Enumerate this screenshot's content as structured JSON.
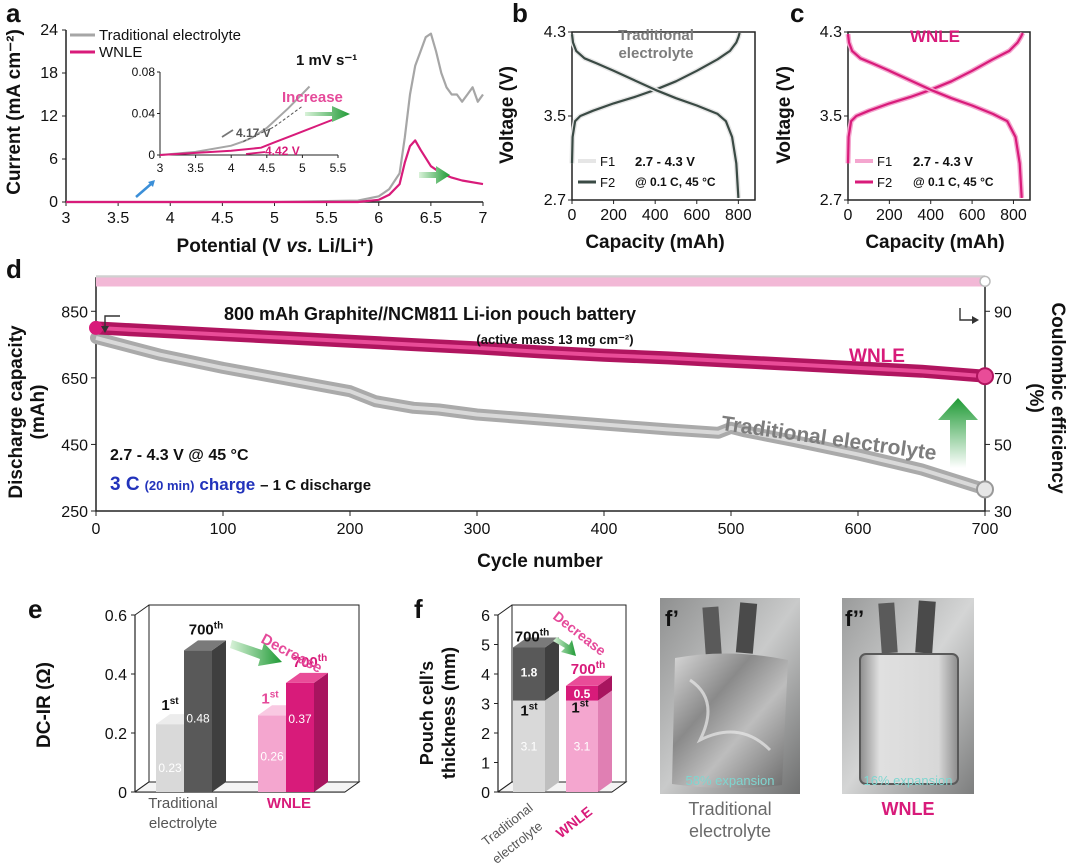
{
  "colors": {
    "traditional": "#a6a6a6",
    "wnle": "#d81b7a",
    "dark": "#3a4a44",
    "pink_light": "#f4a6cf",
    "green_arrow": "#27a83a",
    "blue_text": "#2233bb"
  },
  "panel_labels": {
    "a": "a",
    "b": "b",
    "c": "c",
    "d": "d",
    "e": "e",
    "f": "f",
    "f1": "f’",
    "f2": "f’’"
  },
  "chart_data": [
    {
      "id": "a",
      "type": "line",
      "xlabel": "Potential (V vs. Li/Li⁺)",
      "xlabel_parts": {
        "pre": "Potential (V ",
        "it": "vs.",
        "post": " Li/Li⁺)"
      },
      "ylabel": "Current (mA cm⁻²)",
      "xlim": [
        3,
        7
      ],
      "ylim": [
        0,
        24
      ],
      "xticks": [
        "3",
        "3.5",
        "4",
        "4.5",
        "5",
        "5.5",
        "6",
        "6.5",
        "7"
      ],
      "yticks": [
        "0",
        "6",
        "12",
        "18",
        "24"
      ],
      "annotation": "1 mV s⁻¹",
      "legend": [
        "Traditional electrolyte",
        "WNLE"
      ],
      "series": [
        {
          "name": "Traditional electrolyte",
          "x": [
            3,
            5,
            5.8,
            6,
            6.1,
            6.2,
            6.25,
            6.3,
            6.35,
            6.4,
            6.45,
            6.5,
            6.55,
            6.6,
            6.65,
            6.7,
            6.75,
            6.8,
            6.85,
            6.9,
            6.95,
            7
          ],
          "y": [
            0,
            0,
            0.2,
            0.8,
            1.8,
            4,
            9,
            15,
            19,
            21,
            23,
            23.5,
            21,
            18,
            16,
            15,
            15,
            14,
            15,
            16,
            14,
            15
          ]
        },
        {
          "name": "WNLE",
          "x": [
            3,
            5.8,
            6,
            6.1,
            6.2,
            6.25,
            6.3,
            6.35,
            6.4,
            6.5,
            6.6,
            6.7,
            6.8,
            7
          ],
          "y": [
            0,
            0,
            0.3,
            1,
            2.5,
            5.5,
            7.8,
            8.6,
            7.3,
            5,
            4,
            3.4,
            3,
            2.5
          ]
        }
      ],
      "inset": {
        "xlim": [
          3,
          5.5
        ],
        "ylim": [
          0,
          0.08
        ],
        "xticks": [
          "3",
          "3.5",
          "4",
          "4.5",
          "5",
          "5.5"
        ],
        "yticks": [
          "0",
          "0.04",
          "0.08"
        ],
        "label_trad": "4.17 V",
        "label_wnle": "4.42 V",
        "increase_label": "Increase",
        "series": [
          {
            "name": "Traditional electrolyte",
            "x": [
              3,
              3.5,
              4,
              4.17,
              4.3,
              4.5,
              4.8,
              5.1
            ],
            "y": [
              0,
              0.003,
              0.009,
              0.013,
              0.017,
              0.026,
              0.045,
              0.066
            ]
          },
          {
            "name": "WNLE",
            "x": [
              3,
              3.5,
              4,
              4.42,
              4.6,
              4.9,
              5.2,
              5.5
            ],
            "y": [
              0,
              0.002,
              0.004,
              0.007,
              0.012,
              0.02,
              0.028,
              0.036
            ]
          }
        ]
      }
    },
    {
      "id": "b",
      "type": "line",
      "title": "Traditional electrolyte",
      "title_lines": [
        "Traditional",
        "electrolyte"
      ],
      "xlabel": "Capacity (mAh)",
      "ylabel": "Voltage (V)",
      "xlim": [
        0,
        880
      ],
      "ylim": [
        2.7,
        4.3
      ],
      "xticks": [
        "0",
        "200",
        "400",
        "600",
        "800"
      ],
      "yticks": [
        "2.7",
        "3.5",
        "4.3"
      ],
      "legend": [
        "F1",
        "F2"
      ],
      "note": [
        "2.7 - 4.3 V",
        "@ 0.1 C, 45 °C"
      ],
      "series": [
        {
          "name": "Charge",
          "x": [
            0,
            3,
            15,
            40,
            100,
            200,
            300,
            400,
            500,
            600,
            700,
            760,
            790,
            800,
            806
          ],
          "y": [
            3.05,
            3.3,
            3.45,
            3.5,
            3.55,
            3.62,
            3.68,
            3.75,
            3.83,
            3.93,
            4.04,
            4.12,
            4.2,
            4.25,
            4.29
          ]
        },
        {
          "name": "Discharge",
          "x": [
            0,
            5,
            20,
            60,
            120,
            200,
            300,
            400,
            500,
            600,
            700,
            740,
            770,
            790,
            800
          ],
          "y": [
            4.28,
            4.2,
            4.12,
            4.05,
            4,
            3.93,
            3.84,
            3.75,
            3.67,
            3.6,
            3.52,
            3.45,
            3.3,
            3.05,
            2.72
          ]
        }
      ]
    },
    {
      "id": "c",
      "type": "line",
      "title": "WNLE",
      "xlabel": "Capacity (mAh)",
      "ylabel": "Voltage (V)",
      "xlim": [
        0,
        880
      ],
      "ylim": [
        2.7,
        4.3
      ],
      "xticks": [
        "0",
        "200",
        "400",
        "600",
        "800"
      ],
      "yticks": [
        "2.7",
        "3.5",
        "4.3"
      ],
      "legend": [
        "F1",
        "F2"
      ],
      "note": [
        "2.7 - 4.3 V",
        "@ 0.1 C, 45 °C"
      ],
      "series": [
        {
          "name": "Charge",
          "x": [
            0,
            3,
            15,
            40,
            100,
            200,
            300,
            400,
            500,
            600,
            700,
            780,
            820,
            835,
            845
          ],
          "y": [
            3.05,
            3.3,
            3.45,
            3.5,
            3.55,
            3.62,
            3.68,
            3.75,
            3.83,
            3.93,
            4.04,
            4.12,
            4.2,
            4.25,
            4.29
          ]
        },
        {
          "name": "Discharge",
          "x": [
            0,
            5,
            20,
            60,
            120,
            200,
            300,
            400,
            500,
            600,
            700,
            770,
            810,
            830,
            840
          ],
          "y": [
            4.28,
            4.2,
            4.12,
            4.05,
            4,
            3.93,
            3.84,
            3.75,
            3.67,
            3.6,
            3.52,
            3.45,
            3.3,
            3.05,
            2.72
          ]
        }
      ]
    },
    {
      "id": "d",
      "type": "line",
      "xlabel": "Cycle number",
      "ylabel_left": [
        "Discharge capacity",
        "(mAh)"
      ],
      "ylabel_right": [
        "Coulombic efficiency",
        "(%)"
      ],
      "xlim": [
        0,
        700
      ],
      "ylim_left": [
        250,
        950
      ],
      "ylim_right": [
        30,
        100
      ],
      "xticks": [
        "0",
        "100",
        "200",
        "300",
        "400",
        "500",
        "600",
        "700"
      ],
      "yticks_left": [
        "250",
        "450",
        "650",
        "850"
      ],
      "yticks_right": [
        "30",
        "50",
        "70",
        "90"
      ],
      "title_lines": [
        "800 mAh Graphite//NCM811 Li-ion pouch battery",
        "(active mass 13 mg cm⁻²)"
      ],
      "cond1": "2.7 - 4.3 V @ 45 °C",
      "cond2_parts": [
        "3 C",
        "(20 min)",
        "charge",
        "– 1 C discharge"
      ],
      "label_wnle": "WNLE",
      "label_trad": "Traditional electrolyte",
      "series": [
        {
          "name": "WNLE capacity",
          "axis": "left",
          "x": [
            0,
            50,
            100,
            150,
            200,
            250,
            300,
            350,
            400,
            450,
            500,
            550,
            600,
            650,
            700
          ],
          "y": [
            800,
            790,
            780,
            770,
            760,
            750,
            740,
            728,
            718,
            710,
            700,
            690,
            680,
            670,
            655
          ]
        },
        {
          "name": "Traditional capacity",
          "axis": "left",
          "x": [
            0,
            20,
            50,
            100,
            150,
            200,
            220,
            250,
            270,
            300,
            350,
            400,
            450,
            490,
            500,
            510,
            550,
            600,
            650,
            700
          ],
          "y": [
            770,
            750,
            720,
            680,
            645,
            610,
            580,
            560,
            555,
            540,
            525,
            510,
            495,
            485,
            500,
            490,
            460,
            420,
            375,
            315
          ]
        },
        {
          "name": "Traditional CE",
          "axis": "right",
          "x": [
            0,
            700
          ],
          "y": [
            99.5,
            99.5
          ]
        },
        {
          "name": "WNLE CE",
          "axis": "right",
          "x": [
            0,
            700
          ],
          "y": [
            98.8,
            98.8
          ]
        }
      ]
    },
    {
      "id": "e",
      "type": "bar",
      "ylabel": "DC-IR (Ω)",
      "ylim": [
        0,
        0.6
      ],
      "yticks": [
        "0",
        "0.2",
        "0.4",
        "0.6"
      ],
      "categories": [
        "Traditional electrolyte",
        "WNLE"
      ],
      "category_lines": [
        [
          "Traditional",
          "electrolyte"
        ],
        [
          "WNLE"
        ]
      ],
      "series": [
        {
          "name": "1st",
          "values": [
            0.23,
            0.26
          ]
        },
        {
          "name": "700th",
          "values": [
            0.48,
            0.37
          ]
        }
      ],
      "value_labels": [
        [
          "0.23",
          "0.48"
        ],
        [
          "0.26",
          "0.37"
        ]
      ],
      "annotation": "Decrease"
    },
    {
      "id": "f",
      "type": "bar",
      "ylabel": "Pouch cell’s thickness (mm)",
      "ylabel_lines": [
        "Pouch cell’s",
        "thickness (mm)"
      ],
      "ylim": [
        0,
        6
      ],
      "yticks": [
        "0",
        "1",
        "2",
        "3",
        "4",
        "5",
        "6"
      ],
      "categories": [
        "Traditional electrolyte",
        "WNLE"
      ],
      "category_lines": [
        [
          "Traditional",
          "electrolyte"
        ],
        [
          "WNLE"
        ]
      ],
      "stacked": true,
      "series": [
        {
          "name": "1st",
          "values": [
            3.1,
            3.1
          ]
        },
        {
          "name": "700th increase",
          "values": [
            1.8,
            0.5
          ]
        }
      ],
      "value_labels": [
        [
          "3.1",
          "1.8"
        ],
        [
          "3.1",
          "0.5"
        ]
      ],
      "annotation": "Decrease"
    }
  ],
  "photos": [
    {
      "caption_overlay": "58% expansion",
      "caption_lines": [
        "Traditional",
        "electrolyte"
      ]
    },
    {
      "caption_overlay": "16% expansion",
      "caption_lines": [
        "WNLE"
      ]
    }
  ]
}
